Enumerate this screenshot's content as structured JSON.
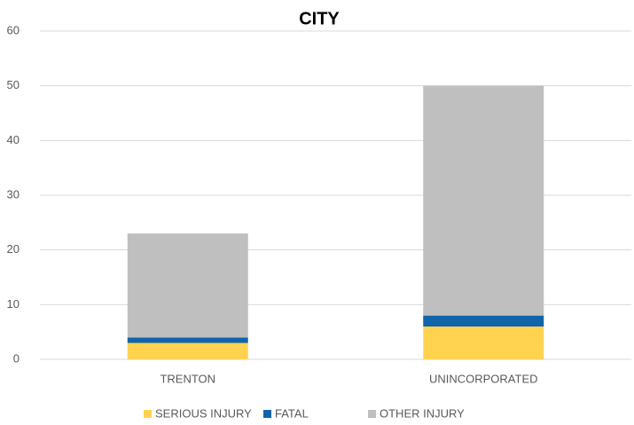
{
  "chart_data": {
    "type": "stacked_bar",
    "title": "CITY",
    "categories": [
      "TRENTON",
      "UNINCORPORATED"
    ],
    "series": [
      {
        "name": "SERIOUS INJURY",
        "color": "#FFD350",
        "values": [
          3,
          6
        ]
      },
      {
        "name": "FATAL",
        "color": "#0F64AA",
        "values": [
          1,
          2
        ]
      },
      {
        "name": "OTHER INJURY",
        "color": "#BFBFBF",
        "values": [
          19,
          42
        ]
      }
    ],
    "ylim": [
      0,
      60
    ],
    "yticks": [
      0,
      10,
      20,
      30,
      40,
      50,
      60
    ],
    "grid": true,
    "legend": "bottom"
  }
}
